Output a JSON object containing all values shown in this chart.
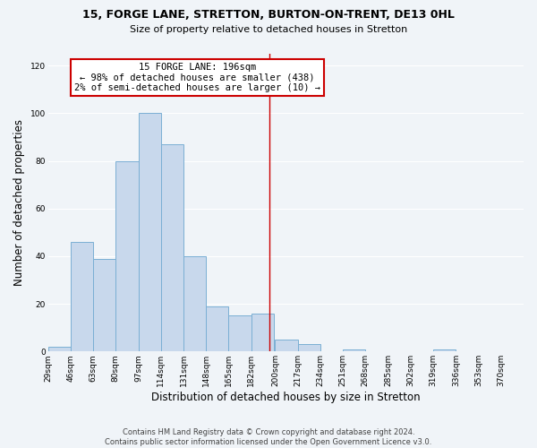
{
  "title": "15, FORGE LANE, STRETTON, BURTON-ON-TRENT, DE13 0HL",
  "subtitle": "Size of property relative to detached houses in Stretton",
  "xlabel": "Distribution of detached houses by size in Stretton",
  "ylabel": "Number of detached properties",
  "bar_color": "#c8d8ec",
  "bar_edge_color": "#7aafd4",
  "background_color": "#f0f4f8",
  "grid_color": "#ffffff",
  "bin_labels": [
    "29sqm",
    "46sqm",
    "63sqm",
    "80sqm",
    "97sqm",
    "114sqm",
    "131sqm",
    "148sqm",
    "165sqm",
    "182sqm",
    "200sqm",
    "217sqm",
    "234sqm",
    "251sqm",
    "268sqm",
    "285sqm",
    "302sqm",
    "319sqm",
    "336sqm",
    "353sqm",
    "370sqm"
  ],
  "bin_edges": [
    29,
    46,
    63,
    80,
    97,
    114,
    131,
    148,
    165,
    182,
    200,
    217,
    234,
    251,
    268,
    285,
    302,
    319,
    336,
    353,
    370
  ],
  "bin_width": 17,
  "bar_heights": [
    2,
    46,
    39,
    80,
    100,
    87,
    40,
    19,
    15,
    16,
    5,
    3,
    0,
    1,
    0,
    0,
    0,
    1,
    0,
    0,
    0
  ],
  "ylim": [
    0,
    125
  ],
  "yticks": [
    0,
    20,
    40,
    60,
    80,
    100,
    120
  ],
  "property_size": 196,
  "annotation_title": "15 FORGE LANE: 196sqm",
  "annotation_line1": "← 98% of detached houses are smaller (438)",
  "annotation_line2": "2% of semi-detached houses are larger (10) →",
  "annotation_box_color": "#ffffff",
  "annotation_box_edge_color": "#cc0000",
  "vline_color": "#cc0000",
  "footer_line1": "Contains HM Land Registry data © Crown copyright and database right 2024.",
  "footer_line2": "Contains public sector information licensed under the Open Government Licence v3.0.",
  "title_fontsize": 9.0,
  "subtitle_fontsize": 8.0,
  "xlabel_fontsize": 8.5,
  "ylabel_fontsize": 8.5,
  "tick_fontsize": 6.5,
  "footer_fontsize": 6.0,
  "annot_fontsize": 7.5
}
